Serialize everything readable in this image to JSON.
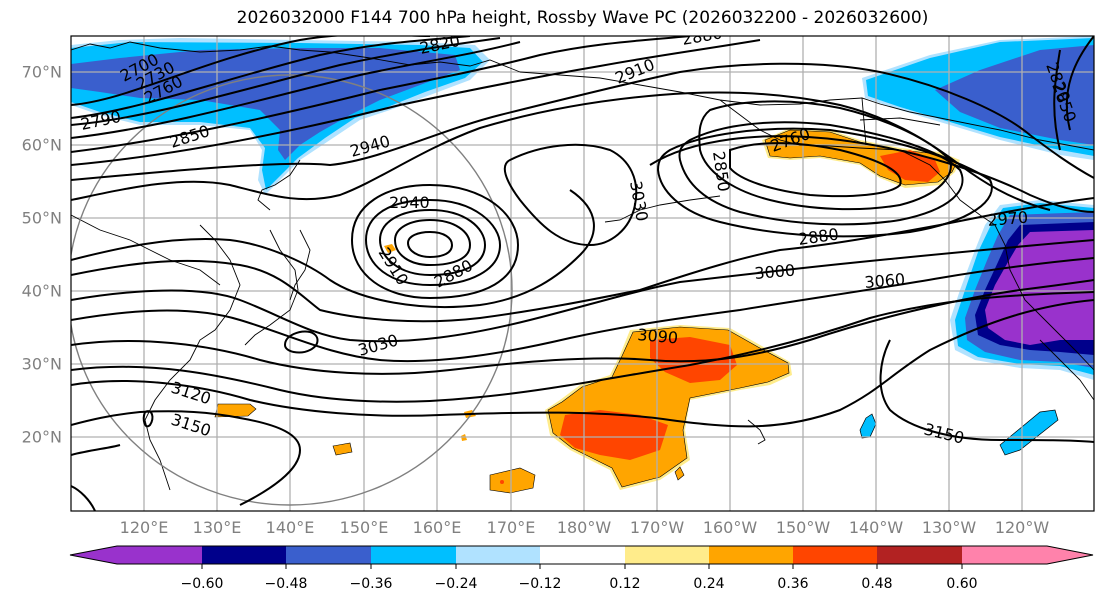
{
  "title": "2026032000 F144 700 hPa height, Rossby Wave PC (2026032200 - 2026032600)",
  "map": {
    "projection": "PlateCarree",
    "lat_labels": [
      "70°N",
      "60°N",
      "50°N",
      "40°N",
      "30°N",
      "20°N"
    ],
    "lon_labels": [
      "120°E",
      "130°E",
      "140°E",
      "150°E",
      "160°E",
      "170°E",
      "180°W",
      "170°W",
      "160°W",
      "150°W",
      "140°W",
      "130°W",
      "120°W"
    ],
    "lon_range": [
      "110°E",
      "110°W"
    ],
    "lat_range": [
      "10°N",
      "75°N"
    ],
    "gridlines": true,
    "colors": {
      "grid": "#b0b0b0",
      "label_gray": "#808080",
      "contour": "#000000",
      "reference_circle": "#808080"
    }
  },
  "contours": {
    "variable": "700 hPa height",
    "units": "m",
    "labels": [
      {
        "value": "2700"
      },
      {
        "value": "2730"
      },
      {
        "value": "2760"
      },
      {
        "value": "2790"
      },
      {
        "value": "2820"
      },
      {
        "value": "2850"
      },
      {
        "value": "2940"
      },
      {
        "value": "2940"
      },
      {
        "value": "2910"
      },
      {
        "value": "2880"
      },
      {
        "value": "2880"
      },
      {
        "value": "2910"
      },
      {
        "value": "3030"
      },
      {
        "value": "2850"
      },
      {
        "value": "2760"
      },
      {
        "value": "2880"
      },
      {
        "value": "3000"
      },
      {
        "value": "3060"
      },
      {
        "value": "2970"
      },
      {
        "value": "3030"
      },
      {
        "value": "3090"
      },
      {
        "value": "3120"
      },
      {
        "value": "3150"
      },
      {
        "value": "3150"
      },
      {
        "value": "2820"
      },
      {
        "value": "2850"
      }
    ]
  },
  "colorbar": {
    "variable": "Rossby Wave PC",
    "ticks": [
      "−0.60",
      "−0.48",
      "−0.36",
      "−0.24",
      "−0.12",
      "0.12",
      "0.24",
      "0.36",
      "0.48",
      "0.60"
    ],
    "levels": [
      -0.6,
      -0.48,
      -0.36,
      -0.24,
      -0.12,
      0.12,
      0.24,
      0.36,
      0.48,
      0.6
    ],
    "extend": "both",
    "colors": [
      "#9932cc",
      "#00008b",
      "#3a5fcd",
      "#00bfff",
      "#b0e2ff",
      "#ffffff",
      "#ffec8b",
      "#ffa500",
      "#ff4500",
      "#b22222",
      "#ff82ab"
    ]
  }
}
